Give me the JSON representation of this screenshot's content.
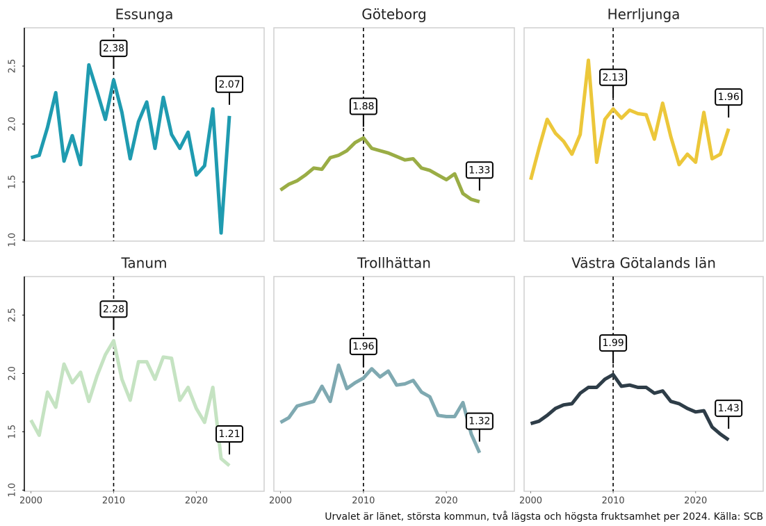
{
  "chart_data": [
    {
      "type": "line",
      "title": "Essunga",
      "color": "#1f9bb0",
      "x": [
        2000,
        2001,
        2002,
        2003,
        2004,
        2005,
        2006,
        2007,
        2008,
        2009,
        2010,
        2011,
        2012,
        2013,
        2014,
        2015,
        2016,
        2017,
        2018,
        2019,
        2020,
        2021,
        2022,
        2023,
        2024
      ],
      "values": [
        1.71,
        1.73,
        1.97,
        2.27,
        1.68,
        1.9,
        1.65,
        2.51,
        2.28,
        2.04,
        2.38,
        2.1,
        1.7,
        2.02,
        2.19,
        1.79,
        2.23,
        1.91,
        1.79,
        1.93,
        1.56,
        1.64,
        2.13,
        1.06,
        2.07
      ],
      "xlim": [
        1999.2,
        2028.2
      ],
      "ylim": [
        0.99,
        2.83
      ],
      "yticks": [
        {
          "value": 1,
          "label": "1.0"
        },
        1.5,
        {
          "value": 2,
          "label": "2.0"
        },
        2.5
      ],
      "vline": 2010,
      "labels_at": [
        2010,
        2024
      ]
    },
    {
      "type": "line",
      "title": "Göteborg",
      "color": "#9aad45",
      "x": [
        2000,
        2001,
        2002,
        2003,
        2004,
        2005,
        2006,
        2007,
        2008,
        2009,
        2010,
        2011,
        2012,
        2013,
        2014,
        2015,
        2016,
        2017,
        2018,
        2019,
        2020,
        2021,
        2022,
        2023,
        2024
      ],
      "values": [
        1.43,
        1.48,
        1.51,
        1.56,
        1.62,
        1.61,
        1.71,
        1.73,
        1.77,
        1.84,
        1.88,
        1.79,
        1.77,
        1.75,
        1.72,
        1.69,
        1.7,
        1.62,
        1.6,
        1.56,
        1.52,
        1.57,
        1.4,
        1.35,
        1.33
      ],
      "xlim": [
        1999.2,
        2028.2
      ],
      "ylim": [
        0.99,
        2.83
      ],
      "vline": 2010,
      "labels_at": [
        2010,
        2024
      ]
    },
    {
      "type": "line",
      "title": "Herrljunga",
      "color": "#ecc73a",
      "x": [
        2000,
        2001,
        2002,
        2003,
        2004,
        2005,
        2006,
        2007,
        2008,
        2009,
        2010,
        2011,
        2012,
        2013,
        2014,
        2015,
        2016,
        2017,
        2018,
        2019,
        2020,
        2021,
        2022,
        2023,
        2024
      ],
      "values": [
        1.52,
        1.79,
        2.04,
        1.92,
        1.85,
        1.74,
        1.91,
        2.55,
        1.67,
        2.04,
        2.13,
        2.05,
        2.12,
        2.09,
        2.08,
        1.87,
        2.18,
        1.89,
        1.65,
        1.74,
        1.67,
        2.1,
        1.7,
        1.74,
        1.96
      ],
      "xlim": [
        1999.2,
        2028.2
      ],
      "ylim": [
        0.99,
        2.83
      ],
      "vline": 2010,
      "labels_at": [
        2010,
        2024
      ]
    },
    {
      "type": "line",
      "title": "Tanum",
      "color": "#c5e3c2",
      "x": [
        2000,
        2001,
        2002,
        2003,
        2004,
        2005,
        2006,
        2007,
        2008,
        2009,
        2010,
        2011,
        2012,
        2013,
        2014,
        2015,
        2016,
        2017,
        2018,
        2019,
        2020,
        2021,
        2022,
        2023,
        2024
      ],
      "values": [
        1.6,
        1.47,
        1.84,
        1.71,
        2.08,
        1.92,
        2.01,
        1.76,
        1.98,
        2.16,
        2.28,
        1.95,
        1.77,
        2.1,
        2.1,
        1.95,
        2.14,
        2.13,
        1.77,
        1.88,
        1.7,
        1.58,
        1.88,
        1.27,
        1.21
      ],
      "xlim": [
        1999.2,
        2028.2
      ],
      "ylim": [
        0.99,
        2.83
      ],
      "xticks": [
        2000,
        2010,
        2020
      ],
      "yticks": [
        {
          "value": 1,
          "label": "1.0"
        },
        1.5,
        {
          "value": 2,
          "label": "2.0"
        },
        2.5
      ],
      "vline": 2010,
      "labels_at": [
        2010,
        2024
      ]
    },
    {
      "type": "line",
      "title": "Trollhättan",
      "color": "#7fa9b1",
      "x": [
        2000,
        2001,
        2002,
        2003,
        2004,
        2005,
        2006,
        2007,
        2008,
        2009,
        2010,
        2011,
        2012,
        2013,
        2014,
        2015,
        2016,
        2017,
        2018,
        2019,
        2020,
        2021,
        2022,
        2023,
        2024
      ],
      "values": [
        1.58,
        1.62,
        1.72,
        1.74,
        1.76,
        1.89,
        1.76,
        2.07,
        1.87,
        1.92,
        1.96,
        2.04,
        1.97,
        2.02,
        1.9,
        1.91,
        1.94,
        1.84,
        1.8,
        1.64,
        1.63,
        1.63,
        1.75,
        1.48,
        1.32
      ],
      "xlim": [
        1999.2,
        2028.2
      ],
      "ylim": [
        0.99,
        2.83
      ],
      "xticks": [
        2000,
        2010,
        2020
      ],
      "vline": 2010,
      "labels_at": [
        2010,
        2024
      ]
    },
    {
      "type": "line",
      "title": "Västra Götalands län",
      "color": "#2e3d48",
      "x": [
        2000,
        2001,
        2002,
        2003,
        2004,
        2005,
        2006,
        2007,
        2008,
        2009,
        2010,
        2011,
        2012,
        2013,
        2014,
        2015,
        2016,
        2017,
        2018,
        2019,
        2020,
        2021,
        2022,
        2023,
        2024
      ],
      "values": [
        1.57,
        1.59,
        1.64,
        1.7,
        1.73,
        1.74,
        1.83,
        1.88,
        1.88,
        1.95,
        1.99,
        1.89,
        1.9,
        1.88,
        1.88,
        1.83,
        1.85,
        1.76,
        1.74,
        1.7,
        1.67,
        1.68,
        1.54,
        1.48,
        1.43
      ],
      "xlim": [
        1999.2,
        2028.2
      ],
      "ylim": [
        0.99,
        2.83
      ],
      "xticks": [
        2000,
        2010,
        2020
      ],
      "vline": 2010,
      "labels_at": [
        2010,
        2024
      ]
    }
  ],
  "caption": "Urvalet är länet, största kommun, två lägsta och högsta fruktsamhet per 2024. Källa: SCB"
}
